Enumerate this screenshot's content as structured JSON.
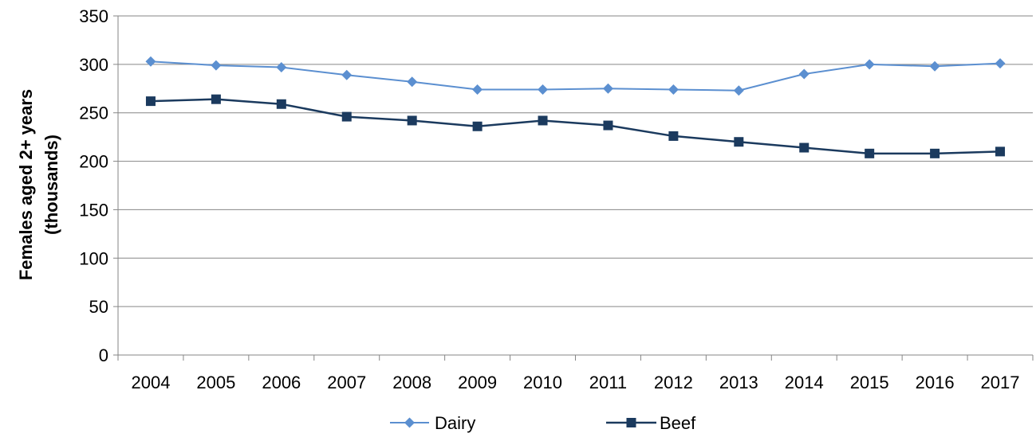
{
  "chart_data": {
    "type": "line",
    "categories": [
      "2004",
      "2005",
      "2006",
      "2007",
      "2008",
      "2009",
      "2010",
      "2011",
      "2012",
      "2013",
      "2014",
      "2015",
      "2016",
      "2017"
    ],
    "series": [
      {
        "name": "Dairy",
        "color": "#5b8fd0",
        "marker": "diamond",
        "values": [
          303,
          299,
          297,
          289,
          282,
          274,
          274,
          275,
          274,
          273,
          290,
          300,
          298,
          301
        ]
      },
      {
        "name": "Beef",
        "color": "#1b3a5e",
        "marker": "square",
        "values": [
          262,
          264,
          259,
          246,
          242,
          236,
          242,
          237,
          226,
          220,
          214,
          208,
          208,
          210
        ]
      }
    ],
    "yticks": [
      "0",
      "50",
      "100",
      "150",
      "200",
      "250",
      "300",
      "350"
    ],
    "ylim": [
      0,
      350
    ],
    "ylabel_line1": "Females aged 2+ years",
    "ylabel_line2": "(thousands)",
    "xlabel": "",
    "grid": "horizontal",
    "legend_position": "bottom"
  }
}
